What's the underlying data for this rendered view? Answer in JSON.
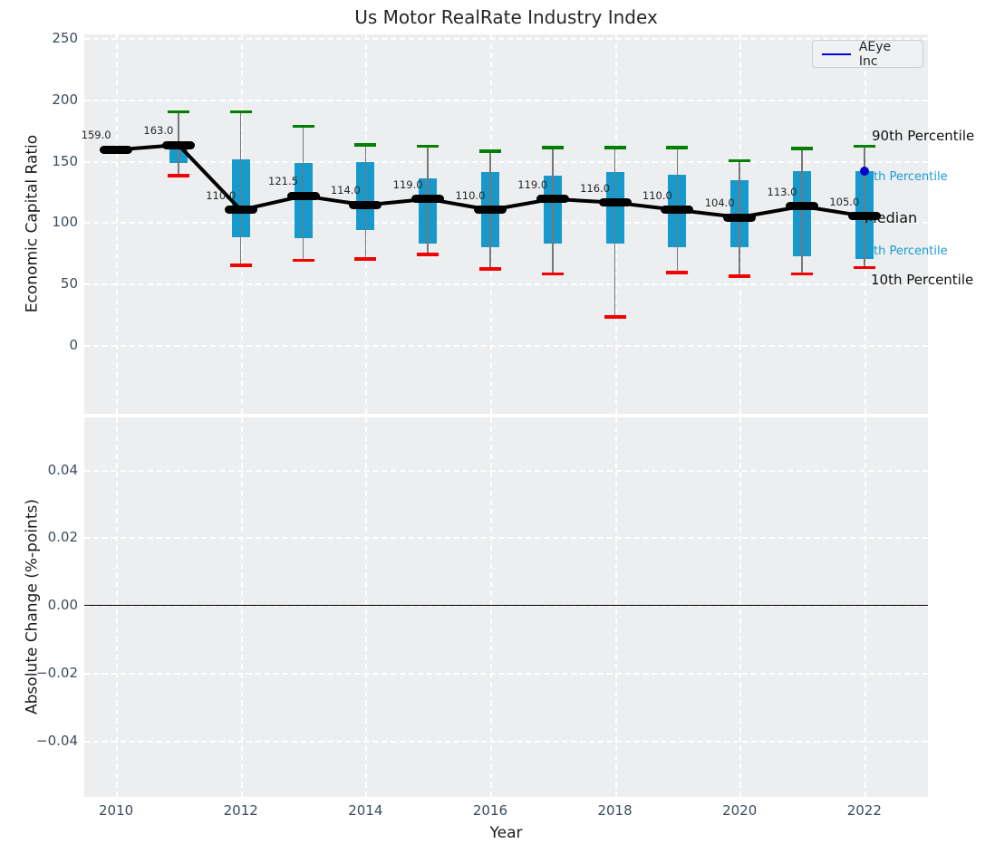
{
  "figure": {
    "title": "Us Motor RealRate Industry Index"
  },
  "legend": {
    "label": "AEye Inc"
  },
  "colors": {
    "axes_background": "#eceef0",
    "box_fill": "#1899cb",
    "p90_cap": "#008000",
    "p10_cap": "#f40000",
    "median_marker": "#000000",
    "median_line": "#000000",
    "company_line": "#0000e0",
    "company_dot": "#0000cc",
    "annotation_cyan": "#1a9cd3",
    "tick_label": "#3c4c5c",
    "title_text": "#262626"
  },
  "top_chart": {
    "ylabel": "Economic Capital Ratio",
    "annotations": {
      "p90": "90th Percentile",
      "p75": "th Percentile",
      "median": "Median",
      "p25": "th Percentile",
      "p10": "10th Percentile"
    }
  },
  "bottom_chart": {
    "ylabel": "Absolute Change (%-points)",
    "xlabel": "Year"
  },
  "chart_data": [
    {
      "type": "boxplot-timeseries-with-median-line",
      "title": "Us Motor RealRate Industry Index",
      "xlabel": "Year",
      "ylabel": "Economic Capital Ratio",
      "legend_position": "upper right",
      "grid": true,
      "ylim": [
        -56,
        253
      ],
      "xlim": [
        2009.49,
        2023.02
      ],
      "yticks": [
        0,
        50,
        100,
        150,
        200,
        250
      ],
      "ytick_labels": [
        "0",
        "50",
        "100",
        "150",
        "200",
        "250"
      ],
      "xticks": [
        2010,
        2012,
        2014,
        2016,
        2018,
        2020,
        2022
      ],
      "xtick_labels": [
        "2010",
        "2012",
        "2014",
        "2016",
        "2018",
        "2020",
        "2022"
      ],
      "years": [
        2010,
        2011,
        2012,
        2013,
        2014,
        2015,
        2016,
        2017,
        2018,
        2019,
        2020,
        2021,
        2022
      ],
      "series": [
        {
          "name": "Median",
          "values": [
            159,
            163,
            110,
            121.5,
            114,
            119,
            110,
            119,
            116,
            110,
            104,
            113,
            105
          ]
        },
        {
          "name": "90th Percentile",
          "values": [
            161,
            190,
            190,
            178,
            163,
            162,
            158,
            161,
            161,
            161,
            150,
            160,
            162
          ]
        },
        {
          "name": "75th Percentile",
          "values": [
            null,
            159,
            151,
            148,
            149,
            136,
            141,
            138,
            141,
            139,
            134,
            142,
            142
          ]
        },
        {
          "name": "25th Percentile",
          "values": [
            null,
            148,
            88,
            87,
            94,
            83,
            80,
            83,
            83,
            80,
            80,
            72,
            70
          ]
        },
        {
          "name": "10th Percentile",
          "values": [
            null,
            138,
            65,
            69,
            70,
            74,
            62,
            58,
            23,
            59,
            56,
            58,
            63
          ]
        }
      ],
      "median_point_labels": [
        "159.0",
        "163.0",
        "110.0",
        "121.5",
        "114.0",
        "119.0",
        "110.0",
        "119.0",
        "116.0",
        "110.0",
        "104.0",
        "113.0",
        "105.0"
      ],
      "company_series": {
        "name": "AEye Inc",
        "points": [
          {
            "year": 2022,
            "value": 142
          }
        ]
      }
    },
    {
      "type": "line",
      "xlabel": "Year",
      "ylabel": "Absolute Change (%-points)",
      "grid": true,
      "ylim": [
        -0.0566,
        0.0554
      ],
      "xlim": [
        2009.49,
        2023.02
      ],
      "yticks": [
        0.04,
        0.02,
        0.0,
        -0.02,
        -0.04
      ],
      "ytick_labels": [
        "0.04",
        "0.02",
        "0.00",
        "−0.02",
        "−0.04"
      ],
      "xticks": [
        2010,
        2012,
        2014,
        2016,
        2018,
        2020,
        2022
      ],
      "xtick_labels": [
        "2010",
        "2012",
        "2014",
        "2016",
        "2018",
        "2020",
        "2022"
      ],
      "zero_line": true,
      "series": []
    }
  ]
}
